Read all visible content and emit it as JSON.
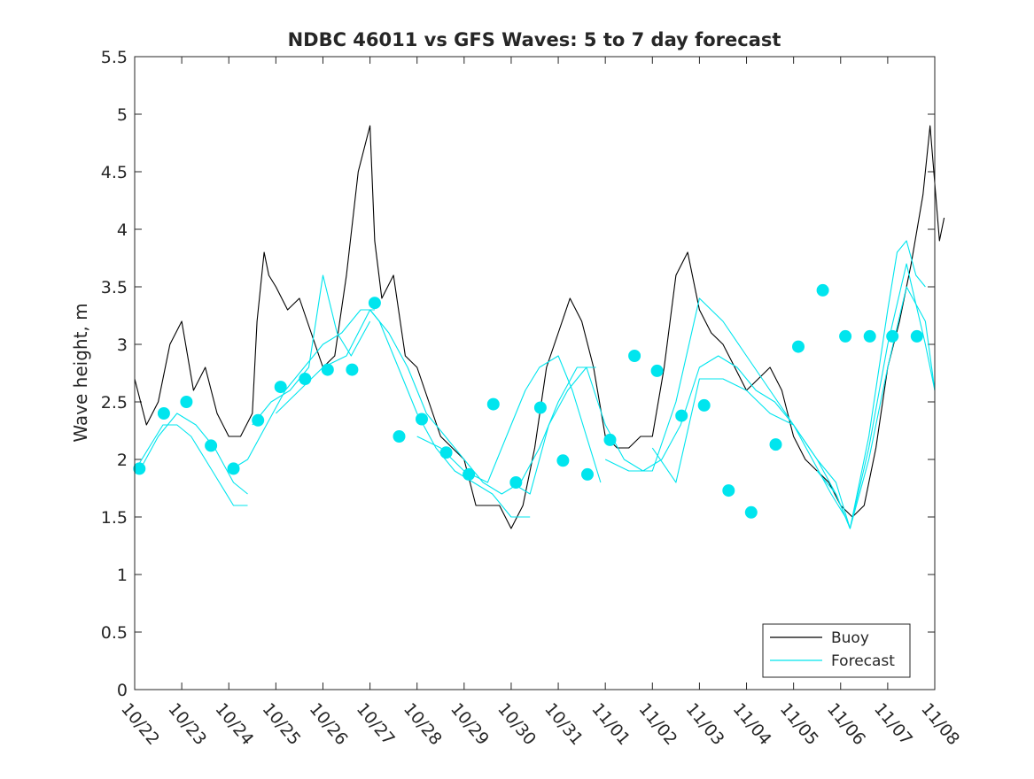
{
  "chart_data": {
    "type": "line",
    "title": "NDBC 46011 vs GFS Waves: 5 to 7 day forecast",
    "xlabel": "",
    "ylabel": "Wave height, m",
    "x_unit": "days since 10/22 00:00",
    "xlim": [
      0,
      17
    ],
    "ylim": [
      0,
      5.5
    ],
    "y_ticks": [
      "0",
      "0.5",
      "1",
      "1.5",
      "2",
      "2.5",
      "3",
      "3.5",
      "4",
      "4.5",
      "5",
      "5.5"
    ],
    "x_tick_labels": [
      "10/22",
      "10/23",
      "10/24",
      "10/25",
      "10/26",
      "10/27",
      "10/28",
      "10/29",
      "10/30",
      "10/31",
      "11/01",
      "11/02",
      "11/03",
      "11/04",
      "11/05",
      "11/06",
      "11/07",
      "11/08"
    ],
    "legend": {
      "position": "bottom-right",
      "entries": [
        {
          "label": "Buoy",
          "color": "#000000"
        },
        {
          "label": "Forecast",
          "color": "#00e5ee"
        }
      ]
    },
    "buoy": {
      "name": "Buoy",
      "color": "#000000",
      "x": [
        0,
        0.25,
        0.5,
        0.75,
        1,
        1.25,
        1.5,
        1.75,
        2,
        2.25,
        2.5,
        2.6,
        2.75,
        2.85,
        3,
        3.25,
        3.5,
        3.75,
        4,
        4.25,
        4.5,
        4.75,
        5,
        5.1,
        5.25,
        5.5,
        5.75,
        6,
        6.25,
        6.5,
        6.75,
        7,
        7.25,
        7.5,
        7.75,
        8,
        8.25,
        8.5,
        8.75,
        9,
        9.25,
        9.5,
        9.75,
        10,
        10.25,
        10.5,
        10.75,
        11,
        11.25,
        11.5,
        11.75,
        12,
        12.25,
        12.5,
        12.75,
        13,
        13.25,
        13.5,
        13.75,
        14,
        14.25,
        14.5,
        14.75,
        15,
        15.25,
        15.5,
        15.75,
        16,
        16.25,
        16.5,
        16.75,
        16.9,
        17,
        17.1,
        17.2
      ],
      "values": [
        2.7,
        2.3,
        2.5,
        3.0,
        3.2,
        2.6,
        2.8,
        2.4,
        2.2,
        2.2,
        2.4,
        3.2,
        3.8,
        3.6,
        3.5,
        3.3,
        3.4,
        3.1,
        2.8,
        2.9,
        3.6,
        4.5,
        4.9,
        3.9,
        3.4,
        3.6,
        2.9,
        2.8,
        2.5,
        2.2,
        2.1,
        2.0,
        1.6,
        1.6,
        1.6,
        1.4,
        1.6,
        2.1,
        2.8,
        3.1,
        3.4,
        3.2,
        2.8,
        2.2,
        2.1,
        2.1,
        2.2,
        2.2,
        2.8,
        3.6,
        3.8,
        3.3,
        3.1,
        3.0,
        2.8,
        2.6,
        2.7,
        2.8,
        2.6,
        2.2,
        2.0,
        1.9,
        1.8,
        1.6,
        1.5,
        1.6,
        2.1,
        2.8,
        3.2,
        3.7,
        4.3,
        4.9,
        4.4,
        3.9,
        4.1
      ]
    },
    "forecast_runs": [
      {
        "name": "Forecast",
        "color": "#00e5ee",
        "x": [
          0,
          0.3,
          0.6,
          0.9,
          1.2,
          1.5,
          1.8,
          2.1,
          2.4
        ],
        "values": [
          1.9,
          2.1,
          2.3,
          2.3,
          2.2,
          2.0,
          1.8,
          1.6,
          1.6
        ]
      },
      {
        "name": "Forecast",
        "color": "#00e5ee",
        "x": [
          0.1,
          0.5,
          0.9,
          1.3,
          1.7,
          2.1,
          2.4
        ],
        "values": [
          1.9,
          2.2,
          2.4,
          2.3,
          2.1,
          1.8,
          1.7
        ]
      },
      {
        "name": "Forecast",
        "color": "#00e5ee",
        "x": [
          2.0,
          2.4,
          2.8,
          3.2,
          3.6,
          4.0,
          4.4,
          4.8,
          5.1
        ],
        "values": [
          1.9,
          2.0,
          2.3,
          2.6,
          2.8,
          3.0,
          3.1,
          3.3,
          3.3
        ]
      },
      {
        "name": "Forecast",
        "color": "#00e5ee",
        "x": [
          2.5,
          2.9,
          3.3,
          3.7,
          4.0,
          4.3,
          4.6,
          5.0
        ],
        "values": [
          2.3,
          2.5,
          2.6,
          2.8,
          3.6,
          3.1,
          2.9,
          3.2
        ]
      },
      {
        "name": "Forecast",
        "color": "#00e5ee",
        "x": [
          3.0,
          3.5,
          4.0,
          4.5,
          5.0,
          5.2,
          5.6,
          6.0,
          6.4,
          6.8,
          7.2,
          7.6,
          8.0,
          8.4
        ],
        "values": [
          2.4,
          2.6,
          2.8,
          2.9,
          3.3,
          3.2,
          2.8,
          2.4,
          2.1,
          1.9,
          1.8,
          1.7,
          1.5,
          1.5
        ]
      },
      {
        "name": "Forecast",
        "color": "#00e5ee",
        "x": [
          5.0,
          5.4,
          5.8,
          6.2,
          6.6,
          7.0,
          7.4,
          7.8,
          8.2,
          8.6,
          9.0,
          9.4,
          9.8
        ],
        "values": [
          3.3,
          3.1,
          2.8,
          2.4,
          2.2,
          2.0,
          1.8,
          1.7,
          1.8,
          2.1,
          2.5,
          2.8,
          2.8
        ]
      },
      {
        "name": "Forecast",
        "color": "#00e5ee",
        "x": [
          6.0,
          6.5,
          7.0,
          7.5,
          8.0,
          8.3,
          8.6,
          9.0,
          9.3,
          9.6,
          9.9
        ],
        "values": [
          2.2,
          2.1,
          1.9,
          1.8,
          2.3,
          2.6,
          2.8,
          2.9,
          2.6,
          2.2,
          1.8
        ]
      },
      {
        "name": "Forecast",
        "color": "#00e5ee",
        "x": [
          8.0,
          8.4,
          8.8,
          9.2,
          9.6,
          10.0,
          10.4,
          10.8,
          11.2,
          11.6,
          12.0,
          12.4,
          12.8,
          13.2,
          13.6,
          14.0,
          14.4,
          14.8,
          15.1
        ],
        "values": [
          1.8,
          1.7,
          2.3,
          2.6,
          2.8,
          2.3,
          2.0,
          1.9,
          2.0,
          2.3,
          2.8,
          2.9,
          2.8,
          2.6,
          2.5,
          2.3,
          2.0,
          1.7,
          1.5
        ]
      },
      {
        "name": "Forecast",
        "color": "#00e5ee",
        "x": [
          10.0,
          10.5,
          11.0,
          11.5,
          12.0,
          12.5,
          13.0,
          13.5,
          14.0,
          14.5,
          14.9,
          15.2,
          15.6,
          16.0,
          16.4,
          16.8,
          17.0
        ],
        "values": [
          2.0,
          1.9,
          1.9,
          2.5,
          3.4,
          3.2,
          2.9,
          2.6,
          2.3,
          2.0,
          1.7,
          1.4,
          2.0,
          2.8,
          3.5,
          3.2,
          2.6
        ]
      },
      {
        "name": "Forecast",
        "color": "#00e5ee",
        "x": [
          11.0,
          11.5,
          12.0,
          12.5,
          13.0,
          13.5,
          14.0,
          14.5,
          14.9,
          15.2,
          15.6,
          16.0,
          16.4,
          16.8,
          17.0
        ],
        "values": [
          2.1,
          1.8,
          2.7,
          2.7,
          2.6,
          2.4,
          2.3,
          2.0,
          1.8,
          1.4,
          2.1,
          3.0,
          3.7,
          3.0,
          2.6
        ]
      },
      {
        "name": "Forecast",
        "color": "#00e5ee",
        "x": [
          14.5,
          14.9,
          15.2,
          15.6,
          16.0,
          16.2,
          16.4,
          16.6,
          16.8
        ],
        "values": [
          1.9,
          1.7,
          1.4,
          2.2,
          3.3,
          3.8,
          3.9,
          3.6,
          3.5
        ]
      }
    ],
    "forecast_markers": {
      "name": "Forecast",
      "color": "#00e5ee",
      "x": [
        0.1,
        0.62,
        1.1,
        1.62,
        2.1,
        2.62,
        3.1,
        3.62,
        4.1,
        4.62,
        5.1,
        5.62,
        6.1,
        6.62,
        7.1,
        7.62,
        8.1,
        8.62,
        9.1,
        9.62,
        10.1,
        10.62,
        11.1,
        11.62,
        12.1,
        12.62,
        13.1,
        13.62,
        14.1,
        14.62,
        15.1,
        15.62,
        16.1,
        16.62
      ],
      "values": [
        1.92,
        2.4,
        2.5,
        2.12,
        1.92,
        2.34,
        2.63,
        2.7,
        2.78,
        2.78,
        3.36,
        2.2,
        2.35,
        2.06,
        1.87,
        2.48,
        1.8,
        2.45,
        1.99,
        1.87,
        2.17,
        2.9,
        2.77,
        2.38,
        2.47,
        1.73,
        1.54,
        2.13,
        2.98,
        3.47,
        3.07,
        3.07,
        3.07,
        3.07
      ]
    }
  }
}
